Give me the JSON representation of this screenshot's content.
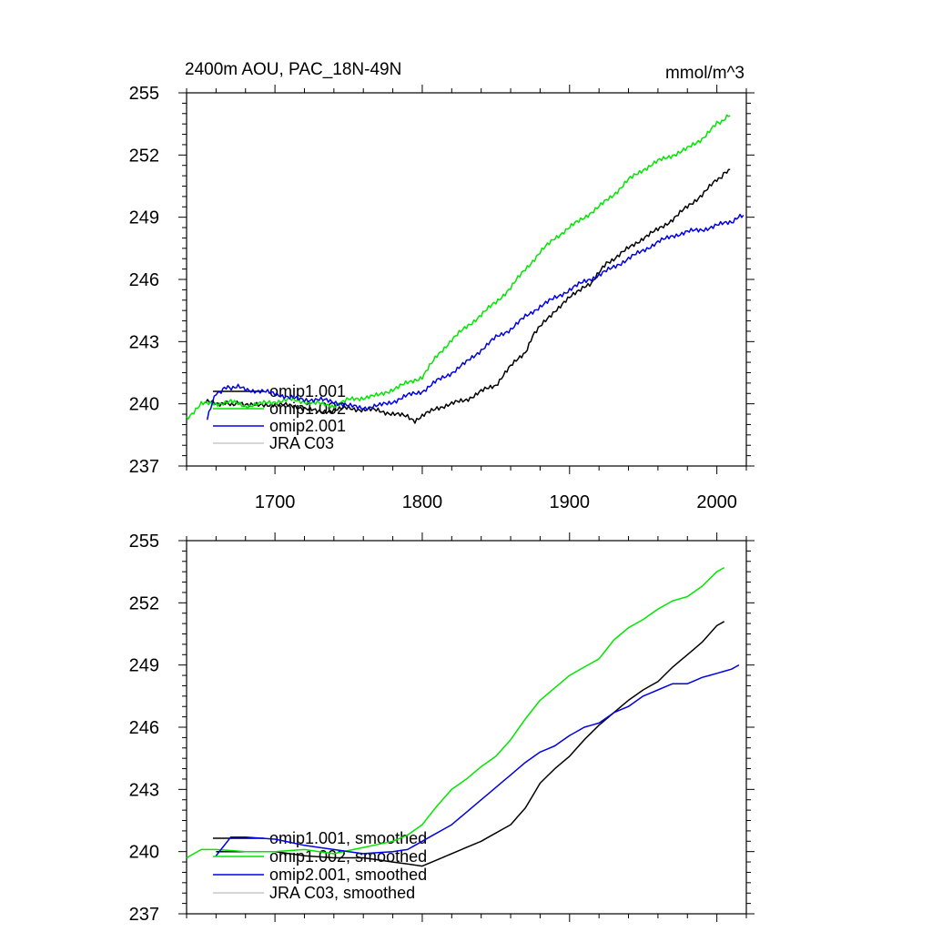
{
  "chart_data": [
    {
      "type": "line",
      "title": "2400m AOU, PAC_18N-49N",
      "units": "mmol/m^3",
      "xlim": [
        1640,
        2020
      ],
      "ylim": [
        237,
        255
      ],
      "yticks": [
        "237",
        "240",
        "243",
        "246",
        "249",
        "252",
        "255"
      ],
      "xticks": [
        "1700",
        "1800",
        "1900",
        "2000"
      ],
      "xtick_values": [
        1700,
        1800,
        1900,
        2000
      ],
      "legend_position": "bottom-left",
      "grid": false,
      "series": [
        {
          "name": "omip1.001",
          "color": "#000000",
          "x": [
            1653,
            1665,
            1680,
            1690,
            1700,
            1710,
            1720,
            1730,
            1740,
            1750,
            1760,
            1770,
            1780,
            1790,
            1795,
            1800,
            1810,
            1820,
            1830,
            1840,
            1850,
            1855,
            1860,
            1870,
            1875,
            1880,
            1890,
            1900,
            1910,
            1915,
            1920,
            1925,
            1930,
            1940,
            1950,
            1960,
            1970,
            1980,
            1990,
            2000,
            2009
          ],
          "y": [
            240.1,
            240.0,
            240.0,
            239.9,
            240.0,
            239.9,
            239.8,
            239.6,
            239.7,
            239.8,
            239.7,
            239.7,
            239.5,
            239.4,
            239.2,
            239.4,
            239.8,
            240.0,
            240.2,
            240.6,
            240.9,
            241.4,
            241.8,
            242.5,
            243.3,
            243.7,
            244.5,
            245.1,
            245.7,
            245.8,
            246.3,
            246.8,
            247.0,
            247.5,
            248.0,
            248.4,
            248.9,
            249.5,
            250.1,
            250.8,
            251.3
          ]
        },
        {
          "name": "omip1.002",
          "color": "#00e600",
          "x": [
            1640,
            1650,
            1660,
            1670,
            1680,
            1690,
            1700,
            1710,
            1720,
            1730,
            1740,
            1750,
            1760,
            1770,
            1780,
            1790,
            1800,
            1810,
            1820,
            1830,
            1840,
            1850,
            1860,
            1870,
            1880,
            1890,
            1900,
            1910,
            1920,
            1930,
            1940,
            1950,
            1960,
            1970,
            1980,
            1990,
            2000,
            2009
          ],
          "y": [
            239.3,
            240.0,
            240.0,
            240.1,
            239.9,
            240.0,
            240.1,
            240.2,
            240.1,
            240.0,
            239.9,
            240.2,
            240.3,
            240.4,
            240.7,
            241.0,
            241.3,
            242.3,
            243.1,
            243.7,
            244.3,
            244.9,
            245.6,
            246.5,
            247.3,
            248.0,
            248.5,
            249.0,
            249.5,
            250.1,
            250.8,
            251.3,
            251.7,
            252.0,
            252.3,
            252.8,
            253.5,
            253.9
          ]
        },
        {
          "name": "omip2.001",
          "color": "#0000e6",
          "x": [
            1654,
            1660,
            1668,
            1675,
            1680,
            1690,
            1700,
            1710,
            1720,
            1730,
            1740,
            1750,
            1760,
            1770,
            1780,
            1790,
            1800,
            1810,
            1820,
            1830,
            1840,
            1850,
            1860,
            1870,
            1880,
            1890,
            1900,
            1910,
            1920,
            1930,
            1940,
            1950,
            1960,
            1970,
            1980,
            1990,
            2000,
            2010,
            2018
          ],
          "y": [
            239.3,
            240.5,
            240.8,
            240.8,
            240.7,
            240.6,
            240.5,
            240.3,
            240.2,
            240.2,
            240.1,
            239.9,
            239.8,
            239.9,
            240.1,
            240.4,
            240.6,
            241.1,
            241.5,
            242.0,
            242.6,
            243.2,
            243.6,
            244.2,
            244.7,
            245.1,
            245.5,
            245.9,
            246.2,
            246.6,
            247.0,
            247.4,
            247.8,
            248.1,
            248.3,
            248.4,
            248.6,
            248.8,
            249.1
          ]
        },
        {
          "name": "JRA C03",
          "color": "#c8c8c8",
          "x": [],
          "y": []
        }
      ]
    },
    {
      "type": "line",
      "title": "",
      "units": "",
      "xlim": [
        1640,
        2020
      ],
      "ylim": [
        237,
        255
      ],
      "yticks": [
        "237",
        "240",
        "243",
        "246",
        "249",
        "252",
        "255"
      ],
      "xticks": [],
      "xtick_values": [
        1700,
        1800,
        1900,
        2000
      ],
      "legend_position": "bottom-left",
      "grid": false,
      "series": [
        {
          "name": "omip1.001, smoothed",
          "color": "#000000",
          "x": [
            1660,
            1680,
            1700,
            1720,
            1740,
            1760,
            1780,
            1800,
            1820,
            1840,
            1850,
            1860,
            1870,
            1880,
            1890,
            1900,
            1910,
            1920,
            1930,
            1940,
            1950,
            1960,
            1970,
            1980,
            1990,
            2000,
            2005
          ],
          "y": [
            240.0,
            240.0,
            240.0,
            239.8,
            239.7,
            239.7,
            239.5,
            239.3,
            239.9,
            240.5,
            240.9,
            241.3,
            242.1,
            243.3,
            244.0,
            244.6,
            245.4,
            246.1,
            246.7,
            247.3,
            247.8,
            248.2,
            248.9,
            249.5,
            250.1,
            250.9,
            251.1
          ]
        },
        {
          "name": "omip1.002, smoothed",
          "color": "#00e600",
          "x": [
            1640,
            1650,
            1660,
            1680,
            1700,
            1720,
            1740,
            1760,
            1780,
            1790,
            1800,
            1810,
            1820,
            1830,
            1840,
            1850,
            1860,
            1870,
            1880,
            1890,
            1900,
            1910,
            1920,
            1930,
            1940,
            1950,
            1960,
            1970,
            1980,
            1990,
            2000,
            2005
          ],
          "y": [
            239.7,
            240.1,
            240.1,
            240.0,
            240.0,
            240.1,
            239.9,
            240.2,
            240.5,
            240.8,
            241.3,
            242.2,
            243.0,
            243.5,
            244.1,
            244.6,
            245.4,
            246.4,
            247.3,
            247.9,
            248.5,
            248.9,
            249.3,
            250.2,
            250.8,
            251.2,
            251.7,
            252.1,
            252.3,
            252.8,
            253.5,
            253.7
          ]
        },
        {
          "name": "omip2.001, smoothed",
          "color": "#0000e6",
          "x": [
            1660,
            1670,
            1680,
            1700,
            1720,
            1740,
            1760,
            1780,
            1790,
            1800,
            1810,
            1820,
            1830,
            1840,
            1850,
            1860,
            1870,
            1880,
            1890,
            1900,
            1910,
            1920,
            1930,
            1940,
            1950,
            1960,
            1970,
            1980,
            1990,
            2000,
            2010,
            2015
          ],
          "y": [
            239.8,
            240.7,
            240.7,
            240.6,
            240.3,
            240.1,
            239.9,
            240.0,
            240.1,
            240.5,
            240.9,
            241.3,
            241.9,
            242.5,
            243.1,
            243.7,
            244.3,
            244.8,
            245.1,
            245.6,
            246.0,
            246.2,
            246.7,
            247.0,
            247.5,
            247.8,
            248.1,
            248.1,
            248.4,
            248.6,
            248.8,
            249.0
          ]
        },
        {
          "name": "JRA C03, smoothed",
          "color": "#c8c8c8",
          "x": [],
          "y": []
        }
      ]
    }
  ]
}
